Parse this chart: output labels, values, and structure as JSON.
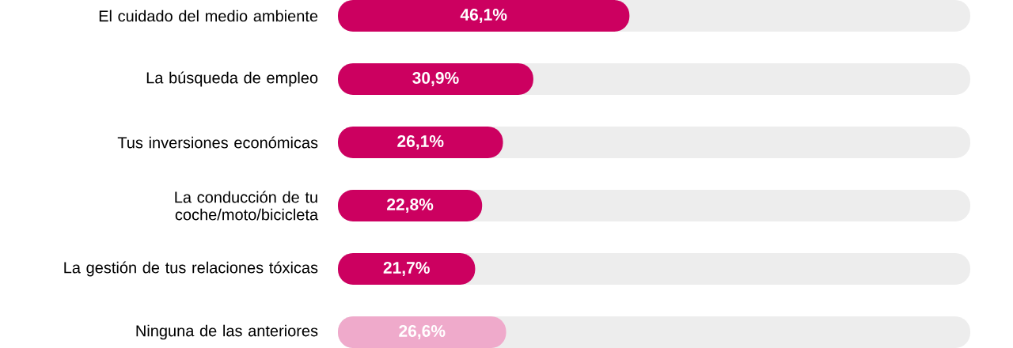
{
  "chart_data": {
    "type": "bar",
    "orientation": "horizontal",
    "categories": [
      "El cuidado del medio ambiente",
      "La búsqueda de empleo",
      "Tus inversiones económicas",
      "La conducción de tu coche/moto/bicicleta",
      "La gestión de tus relaciones tóxicas",
      "Ninguna de las anteriores"
    ],
    "values": [
      46.1,
      30.9,
      26.1,
      22.8,
      21.7,
      26.6
    ],
    "colors": [
      "#cc0060",
      "#cc0060",
      "#cc0060",
      "#cc0060",
      "#cc0060",
      "#efaacb"
    ],
    "value_labels": [
      "46,1%",
      "30,9%",
      "26,1%",
      "22,8%",
      "21,7%",
      "26,6%"
    ],
    "xlim": [
      0,
      100
    ],
    "tick_labels": "y",
    "bands": [
      {
        "axis": "x",
        "from": 0,
        "to": 100,
        "color": "#ededed"
      }
    ]
  }
}
